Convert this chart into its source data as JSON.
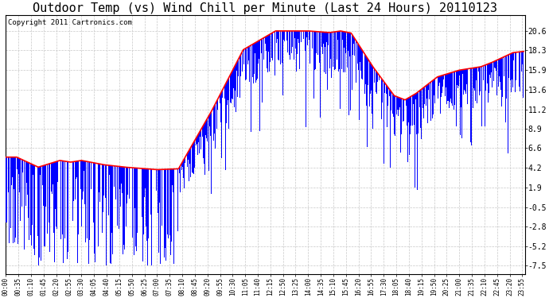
{
  "title": "Outdoor Temp (vs) Wind Chill per Minute (Last 24 Hours) 20110123",
  "copyright_text": "Copyright 2011 Cartronics.com",
  "background_color": "#ffffff",
  "plot_bg_color": "#ffffff",
  "grid_color": "#c8c8c8",
  "bar_color": "#0000ff",
  "line_color": "#ff0000",
  "title_fontsize": 11,
  "yticks": [
    -7.5,
    -5.2,
    -2.8,
    -0.5,
    1.9,
    4.2,
    6.6,
    8.9,
    11.2,
    13.6,
    15.9,
    18.3,
    20.6
  ],
  "ymin": -8.5,
  "ymax": 22.5,
  "xtick_labels": [
    "00:00",
    "00:35",
    "01:10",
    "01:45",
    "02:20",
    "02:55",
    "03:30",
    "04:05",
    "04:40",
    "05:15",
    "05:50",
    "06:25",
    "07:00",
    "07:35",
    "08:10",
    "08:45",
    "09:20",
    "09:55",
    "10:30",
    "11:05",
    "11:40",
    "12:15",
    "12:50",
    "13:25",
    "14:00",
    "14:35",
    "15:10",
    "15:45",
    "16:20",
    "16:55",
    "17:30",
    "18:05",
    "18:40",
    "19:15",
    "19:50",
    "20:25",
    "21:00",
    "21:35",
    "22:10",
    "22:45",
    "23:20",
    "23:55"
  ]
}
